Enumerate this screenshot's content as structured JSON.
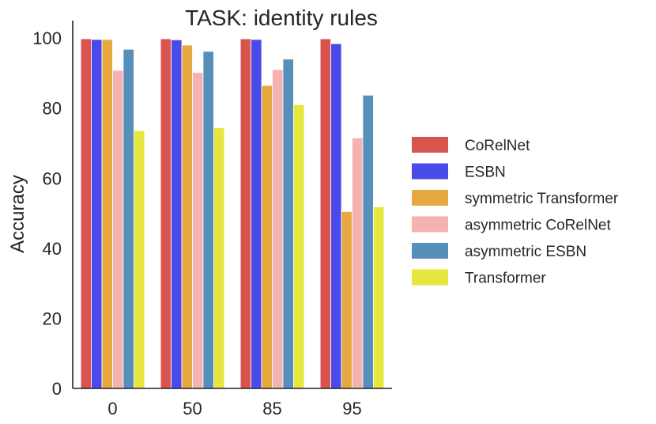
{
  "chart_data": {
    "type": "bar",
    "title": "TASK: identity rules",
    "xlabel": "",
    "ylabel": "Accuracy",
    "categories": [
      "0",
      "50",
      "85",
      "95"
    ],
    "yticks": [
      "0",
      "20",
      "40",
      "60",
      "80",
      "100"
    ],
    "ylim": [
      0,
      105
    ],
    "grid": false,
    "legend_position": "right",
    "series": [
      {
        "name": "CoRelNet",
        "color": "#d9534f",
        "values": [
          99.8,
          99.8,
          99.8,
          99.8
        ]
      },
      {
        "name": "ESBN",
        "color": "#4a4ae8",
        "values": [
          99.6,
          99.5,
          99.6,
          98.4
        ]
      },
      {
        "name": "symmetric Transformer",
        "color": "#e8a840",
        "values": [
          99.6,
          98.0,
          86.5,
          50.5
        ]
      },
      {
        "name": "asymmetric CoRelNet",
        "color": "#f4b3b0",
        "values": [
          90.8,
          90.2,
          91.0,
          71.5
        ]
      },
      {
        "name": "asymmetric ESBN",
        "color": "#568fba",
        "values": [
          96.8,
          96.2,
          94.0,
          83.7
        ]
      },
      {
        "name": "Transformer",
        "color": "#e6e63e",
        "values": [
          73.6,
          74.4,
          81.0,
          51.8
        ]
      }
    ]
  }
}
